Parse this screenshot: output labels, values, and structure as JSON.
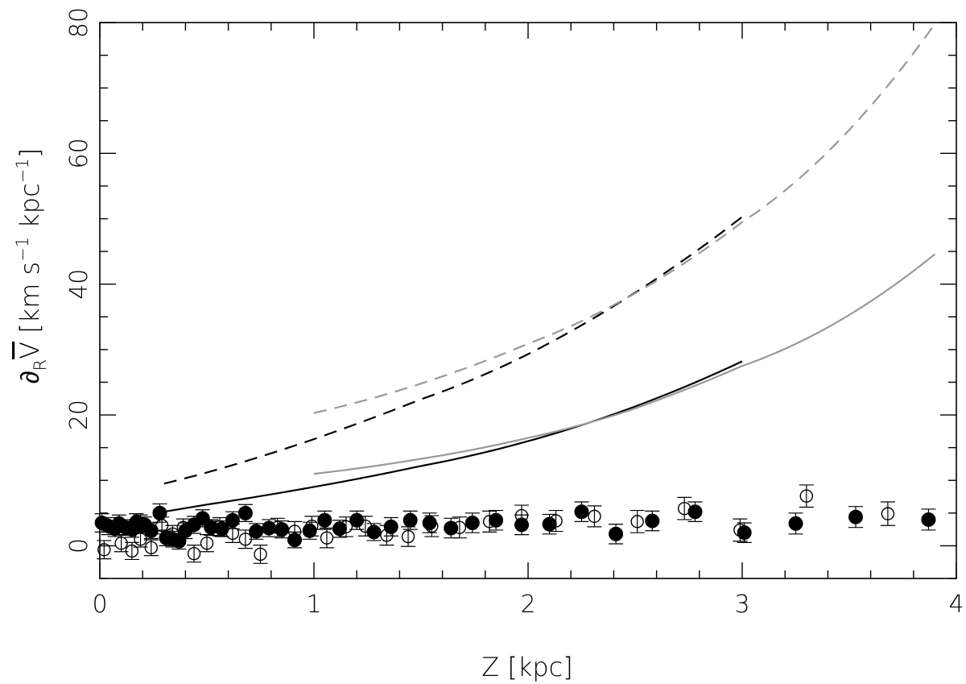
{
  "chart_data": {
    "type": "scatter",
    "xlabel": "Z [kpc]",
    "ylabel_parts": {
      "partial": "∂",
      "sub": "R",
      "vbar": "V",
      "unit": " [km s",
      "exp1": "−1",
      "unit2": " kpc",
      "exp2": "−1",
      "close": "]"
    },
    "xlim": [
      0,
      4
    ],
    "ylim": [
      -5,
      80
    ],
    "x_ticks": [
      0,
      1,
      2,
      3,
      4
    ],
    "x_tick_labels": [
      "0",
      "1",
      "2",
      "3",
      "4"
    ],
    "y_ticks": [
      0,
      20,
      40,
      60,
      80
    ],
    "y_tick_labels": [
      "0",
      "20",
      "40",
      "60",
      "80"
    ],
    "x_minor_step": 0.2,
    "y_minor_step": 5,
    "grid": false,
    "curves": [
      {
        "style": "solid",
        "color": "#000000",
        "x": [
          0.3,
          0.5,
          1.0,
          1.5,
          2.0,
          2.5,
          3.0
        ],
        "y": [
          5.2,
          6.3,
          9.0,
          12.2,
          16.0,
          21.3,
          28.2
        ]
      },
      {
        "style": "dashed",
        "color": "#000000",
        "x": [
          0.3,
          0.5,
          1.0,
          1.5,
          2.0,
          2.5,
          3.0
        ],
        "y": [
          9.5,
          11.2,
          16.3,
          22.4,
          29.3,
          38.7,
          50.3
        ]
      },
      {
        "style": "solid",
        "color": "#999999",
        "x": [
          1.0,
          1.5,
          2.0,
          2.5,
          3.0,
          3.5,
          3.9
        ],
        "y": [
          11.0,
          13.3,
          16.5,
          21.0,
          27.5,
          35.3,
          44.6
        ]
      },
      {
        "style": "dashed",
        "color": "#999999",
        "x": [
          1.0,
          1.5,
          2.0,
          2.5,
          3.0,
          3.5,
          3.9
        ],
        "y": [
          20.3,
          24.8,
          30.9,
          38.6,
          49.5,
          63.6,
          79.8
        ]
      }
    ],
    "series": [
      {
        "marker": "filled-circle",
        "points": [
          [
            0.01,
            3.5,
            1.4
          ],
          [
            0.04,
            3.0,
            1.3
          ],
          [
            0.07,
            2.6,
            1.2
          ],
          [
            0.09,
            3.4,
            1.3
          ],
          [
            0.12,
            2.8,
            1.2
          ],
          [
            0.15,
            2.5,
            1.2
          ],
          [
            0.17,
            3.6,
            1.3
          ],
          [
            0.19,
            3.4,
            1.3
          ],
          [
            0.21,
            3.2,
            1.2
          ],
          [
            0.24,
            2.3,
            1.2
          ],
          [
            0.28,
            5.0,
            1.4
          ],
          [
            0.31,
            1.2,
            1.2
          ],
          [
            0.34,
            1.0,
            1.2
          ],
          [
            0.37,
            0.7,
            1.2
          ],
          [
            0.4,
            2.3,
            1.2
          ],
          [
            0.44,
            3.2,
            1.3
          ],
          [
            0.48,
            4.2,
            1.3
          ],
          [
            0.52,
            2.8,
            1.2
          ],
          [
            0.57,
            2.6,
            1.2
          ],
          [
            0.62,
            3.9,
            1.3
          ],
          [
            0.68,
            5.0,
            1.3
          ],
          [
            0.73,
            2.2,
            1.2
          ],
          [
            0.79,
            2.7,
            1.3
          ],
          [
            0.85,
            2.5,
            1.3
          ],
          [
            0.91,
            0.9,
            1.2
          ],
          [
            0.98,
            2.3,
            1.3
          ],
          [
            1.05,
            3.9,
            1.4
          ],
          [
            1.12,
            2.6,
            1.3
          ],
          [
            1.2,
            3.9,
            1.4
          ],
          [
            1.28,
            2.1,
            1.3
          ],
          [
            1.36,
            2.9,
            1.4
          ],
          [
            1.45,
            3.9,
            1.4
          ],
          [
            1.54,
            3.5,
            1.5
          ],
          [
            1.64,
            2.7,
            1.5
          ],
          [
            1.74,
            3.5,
            1.5
          ],
          [
            1.85,
            3.9,
            1.5
          ],
          [
            1.97,
            3.2,
            1.5
          ],
          [
            2.1,
            3.3,
            1.5
          ],
          [
            2.25,
            5.2,
            1.5
          ],
          [
            2.41,
            1.8,
            1.5
          ],
          [
            2.58,
            3.8,
            1.5
          ],
          [
            2.78,
            5.2,
            1.5
          ],
          [
            3.01,
            2.0,
            1.5
          ],
          [
            3.25,
            3.4,
            1.6
          ],
          [
            3.53,
            4.4,
            1.6
          ],
          [
            3.87,
            4.0,
            1.6
          ]
        ]
      },
      {
        "marker": "open-circle",
        "points": [
          [
            0.02,
            -0.6,
            1.4
          ],
          [
            0.1,
            0.4,
            1.3
          ],
          [
            0.15,
            -0.8,
            1.3
          ],
          [
            0.19,
            1.0,
            1.2
          ],
          [
            0.24,
            -0.3,
            1.2
          ],
          [
            0.29,
            3.1,
            1.3
          ],
          [
            0.34,
            1.8,
            1.3
          ],
          [
            0.39,
            2.8,
            1.3
          ],
          [
            0.44,
            -1.2,
            1.3
          ],
          [
            0.5,
            0.4,
            1.3
          ],
          [
            0.56,
            2.9,
            1.4
          ],
          [
            0.62,
            1.9,
            1.4
          ],
          [
            0.68,
            1.0,
            1.4
          ],
          [
            0.75,
            -1.3,
            1.4
          ],
          [
            0.83,
            2.8,
            1.4
          ],
          [
            0.91,
            2.2,
            1.5
          ],
          [
            0.99,
            3.0,
            1.5
          ],
          [
            1.06,
            1.2,
            1.5
          ],
          [
            1.15,
            2.9,
            1.5
          ],
          [
            1.24,
            3.0,
            1.5
          ],
          [
            1.34,
            1.6,
            1.5
          ],
          [
            1.44,
            1.4,
            1.5
          ],
          [
            1.55,
            3.0,
            1.6
          ],
          [
            1.68,
            2.8,
            1.6
          ],
          [
            1.82,
            3.7,
            1.6
          ],
          [
            1.97,
            4.6,
            1.6
          ],
          [
            2.13,
            3.8,
            1.6
          ],
          [
            2.31,
            4.5,
            1.6
          ],
          [
            2.51,
            3.7,
            1.7
          ],
          [
            2.73,
            5.7,
            1.7
          ],
          [
            2.99,
            2.4,
            1.7
          ],
          [
            3.3,
            7.6,
            1.7
          ],
          [
            3.68,
            4.9,
            1.8
          ]
        ]
      }
    ]
  }
}
